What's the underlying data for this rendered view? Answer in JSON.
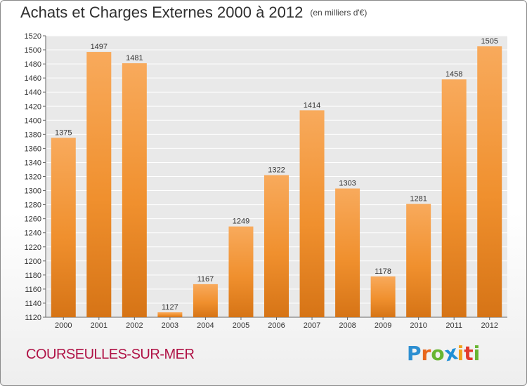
{
  "chart_data": {
    "type": "bar",
    "title": "Achats et Charges Externes 2000 à 2012",
    "subtitle": "(en milliers d'€)",
    "categories": [
      "2000",
      "2001",
      "2002",
      "2003",
      "2004",
      "2005",
      "2006",
      "2007",
      "2008",
      "2009",
      "2010",
      "2011",
      "2012"
    ],
    "values": [
      1375,
      1497,
      1481,
      1127,
      1167,
      1249,
      1322,
      1414,
      1303,
      1178,
      1281,
      1458,
      1505
    ],
    "ylim": [
      1120,
      1520
    ],
    "yticks": [
      1120,
      1140,
      1160,
      1180,
      1200,
      1220,
      1240,
      1260,
      1280,
      1300,
      1320,
      1340,
      1360,
      1380,
      1400,
      1420,
      1440,
      1460,
      1480,
      1500,
      1520
    ],
    "grid": true,
    "bar_color": "#f0902e",
    "bar_color_light": "#f8aa5c",
    "bar_color_dark": "#d67416"
  },
  "footer": {
    "commune": "COURSEULLES-SUR-MER",
    "logo_letters": [
      "P",
      "r",
      "o",
      "x",
      "i",
      "t",
      "i"
    ],
    "logo_colors": [
      "#2d8fd1",
      "#e8661c",
      "#67b531",
      "#1f8fd6",
      "#f0a21c",
      "#e23a2a",
      "#67b531"
    ]
  }
}
